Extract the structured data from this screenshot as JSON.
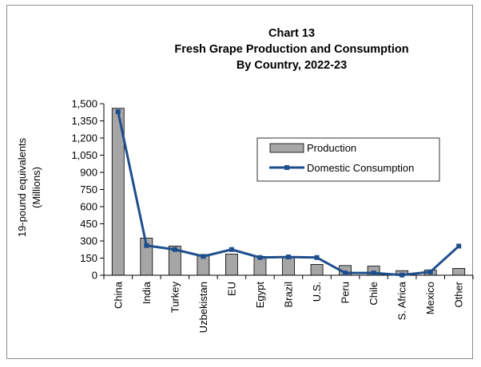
{
  "chart_data": {
    "type": "bar",
    "title_lines": [
      "Chart 13",
      "Fresh Grape Production and Consumption",
      "By Country, 2022-23"
    ],
    "ylabel_lines": [
      "19-pound equivalents",
      "(Millions)"
    ],
    "xlabel": "",
    "categories": [
      "China",
      "India",
      "Turkey",
      "Uzbekistan",
      "EU",
      "Egypt",
      "Brazil",
      "U.S.",
      "Peru",
      "Chile",
      "S. Africa",
      "Mexico",
      "Other"
    ],
    "ylim": [
      0,
      1500
    ],
    "yticks": [
      0,
      150,
      300,
      450,
      600,
      750,
      900,
      1050,
      1200,
      1350,
      1500
    ],
    "ytick_labels": [
      "0",
      "150",
      "300",
      "450",
      "600",
      "750",
      "900",
      "1,050",
      "1,200",
      "1,350",
      "1,500"
    ],
    "grid": false,
    "legend_position": "right-middle",
    "series": [
      {
        "name": "Production",
        "type": "bar",
        "color": "#a6a6a6",
        "values": [
          1460,
          325,
          255,
          180,
          185,
          165,
          160,
          95,
          85,
          80,
          40,
          45,
          60
        ]
      },
      {
        "name": "Domestic Consumption",
        "type": "line",
        "color": "#1f4e8c",
        "values": [
          1430,
          260,
          225,
          165,
          225,
          155,
          160,
          155,
          20,
          20,
          2,
          30,
          255
        ]
      }
    ]
  }
}
